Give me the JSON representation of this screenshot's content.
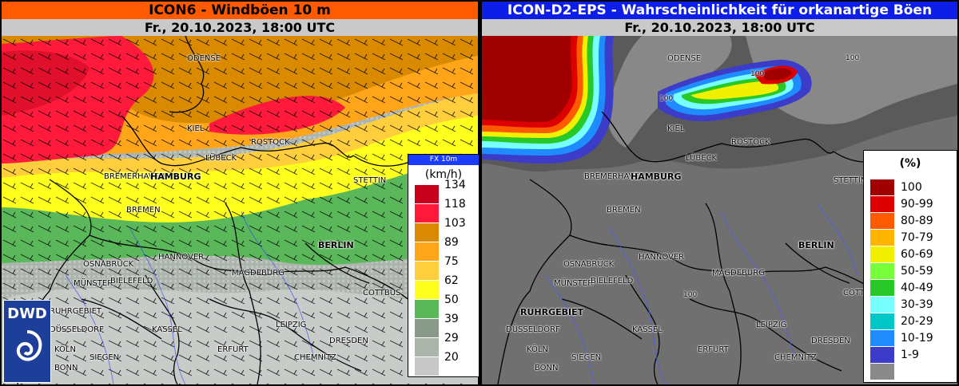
{
  "left_panel": {
    "title": "ICON6 - Windböen 10 m",
    "date": "Fr., 20.10.2023, 18:00 UTC",
    "legend": {
      "title": "FX 10m",
      "unit": "(km/h)",
      "items": [
        {
          "label": "134",
          "color": "#c8001e"
        },
        {
          "label": "118",
          "color": "#ff1a3c"
        },
        {
          "label": "103",
          "color": "#d98a00"
        },
        {
          "label": "89",
          "color": "#ffa51a"
        },
        {
          "label": "75",
          "color": "#ffce3c"
        },
        {
          "label": "62",
          "color": "#ffff1e"
        },
        {
          "label": "50",
          "color": "#5ab85a"
        },
        {
          "label": "39",
          "color": "#8a9a8a"
        },
        {
          "label": "29",
          "color": "#aab4aa"
        },
        {
          "label": "20",
          "color": "#c8c8c8"
        }
      ]
    },
    "logo": "DWD"
  },
  "right_panel": {
    "title": "ICON-D2-EPS - Wahrscheinlichkeit für orkanartige Böen",
    "date": "Fr., 20.10.2023, 18:00 UTC",
    "legend": {
      "unit": "(%)",
      "items": [
        {
          "label": "100",
          "color": "#a00000"
        },
        {
          "label": "90-99",
          "color": "#dc0000"
        },
        {
          "label": "80-89",
          "color": "#ff5a00"
        },
        {
          "label": "70-79",
          "color": "#ffb400"
        },
        {
          "label": "60-69",
          "color": "#f0f000"
        },
        {
          "label": "50-59",
          "color": "#78ff3c"
        },
        {
          "label": "40-49",
          "color": "#28c828"
        },
        {
          "label": "30-39",
          "color": "#78ffff"
        },
        {
          "label": "20-29",
          "color": "#00c8c8"
        },
        {
          "label": "10-19",
          "color": "#1e8cff"
        },
        {
          "label": "1-9",
          "color": "#3c3cc8"
        },
        {
          "label": "",
          "color": "#8a8a8a"
        }
      ]
    },
    "marks": [
      "100",
      "100",
      "100",
      "100"
    ]
  },
  "cities": {
    "odense": "ODENSE",
    "kiel": "KIEL",
    "rostock": "ROSTOCK",
    "luebeck": "LÜBECK",
    "bremerhaven": "BREMERHAVEN",
    "hamburg": "HAMBURG",
    "stettin": "STETTIN",
    "bremen": "BREMEN",
    "berlin": "BERLIN",
    "osnabrueck": "OSNABRÜCK",
    "hannover": "HANNOVER",
    "muenster": "MÜNSTER",
    "bielefeld": "BIELEFELD",
    "magdeburg": "MAGDEBURG",
    "cottbus": "COTTBUS",
    "ruhrgebiet": "RUHRGEBIET",
    "duesseldorf": "DÜSSELDORF",
    "kassel": "KASSEL",
    "leipzig": "LEIPZIG",
    "dresden": "DRESDEN",
    "koeln": "KÖLN",
    "siegen": "SIEGEN",
    "erfurt": "ERFURT",
    "chemnitz": "CHEMNITZ",
    "bonn": "BONN",
    "kopenhagen": "KOPENHAGEN"
  }
}
